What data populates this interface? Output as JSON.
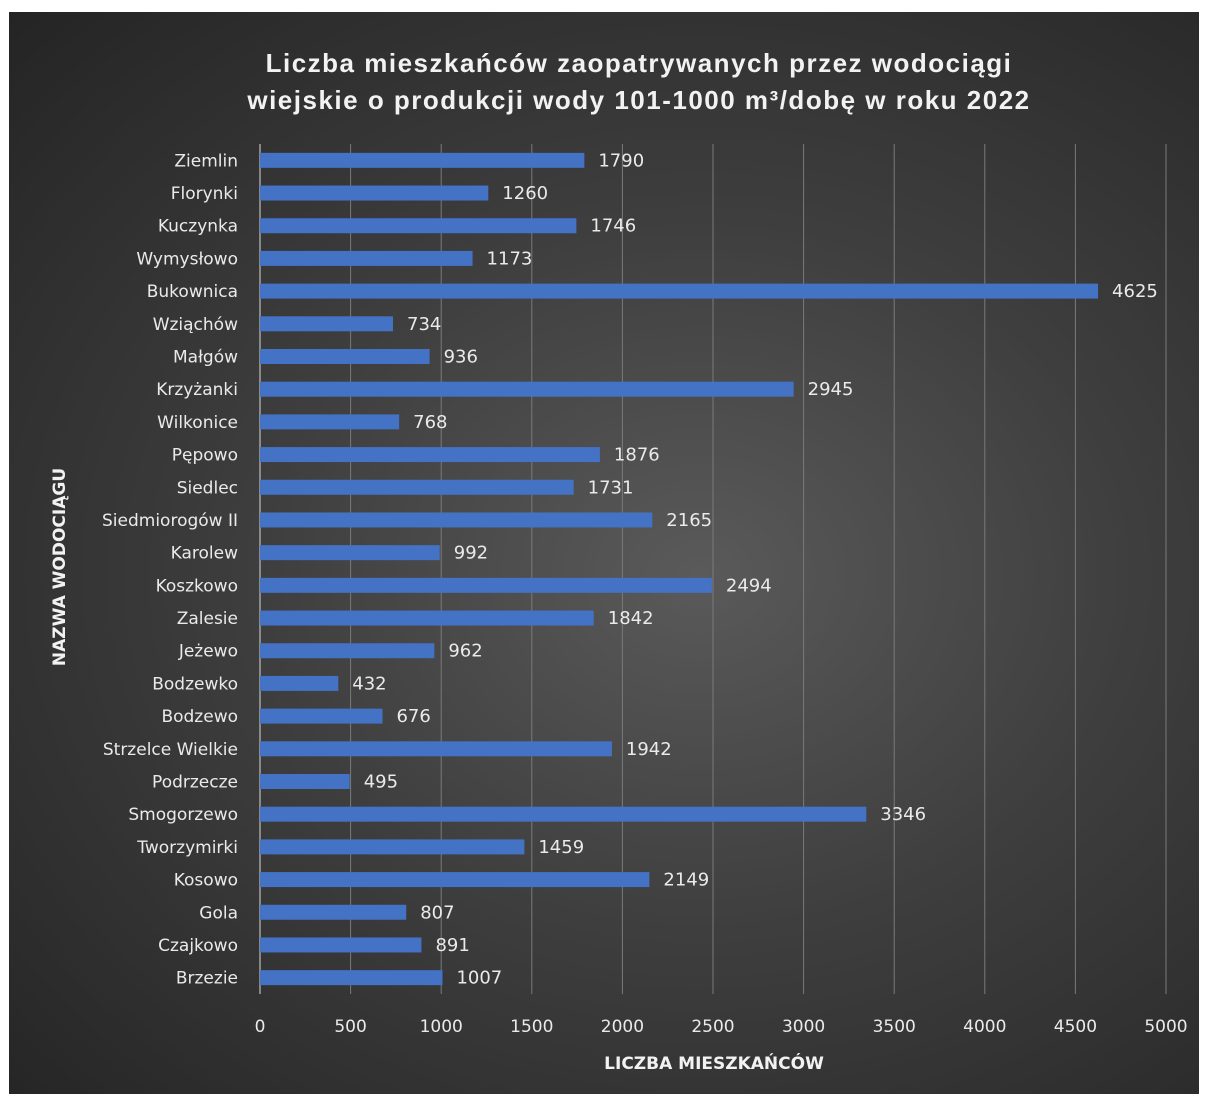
{
  "chart_data": {
    "type": "bar",
    "orientation": "horizontal",
    "title_line1": "Liczba mieszkańców zaopatrywanych przez wodociągi",
    "title_line2": "wiejskie o produkcji  wody 101-1000 m³/dobę  w roku 2022",
    "xlabel": "LICZBA MIESZKAŃCÓW",
    "ylabel": "NAZWA WODOCIĄGU",
    "xlim": [
      0,
      5000
    ],
    "xticks": [
      0,
      500,
      1000,
      1500,
      2000,
      2500,
      3000,
      3500,
      4000,
      4500,
      5000
    ],
    "grid": true,
    "data_labels": true,
    "bar_color": "#4472c4",
    "background_color": "#3a3a3a",
    "categories": [
      "Ziemlin",
      "Florynki",
      "Kuczynka",
      "Wymysłowo",
      "Bukownica",
      "Wziąchów",
      "Małgów",
      "Krzyżanki",
      "Wilkonice",
      "Pępowo",
      "Siedlec",
      "Siedmiorogów II",
      "Karolew",
      "Koszkowo",
      "Zalesie",
      "Jeżewo",
      "Bodzewko",
      "Bodzewo",
      "Strzelce Wielkie",
      "Podrzecze",
      "Smogorzewo",
      "Tworzymirki",
      "Kosowo",
      "Gola",
      "Czajkowo",
      "Brzezie"
    ],
    "values": [
      1790,
      1260,
      1746,
      1173,
      4625,
      734,
      936,
      2945,
      768,
      1876,
      1731,
      2165,
      992,
      2494,
      1842,
      962,
      432,
      676,
      1942,
      495,
      3346,
      1459,
      2149,
      807,
      891,
      1007
    ]
  }
}
